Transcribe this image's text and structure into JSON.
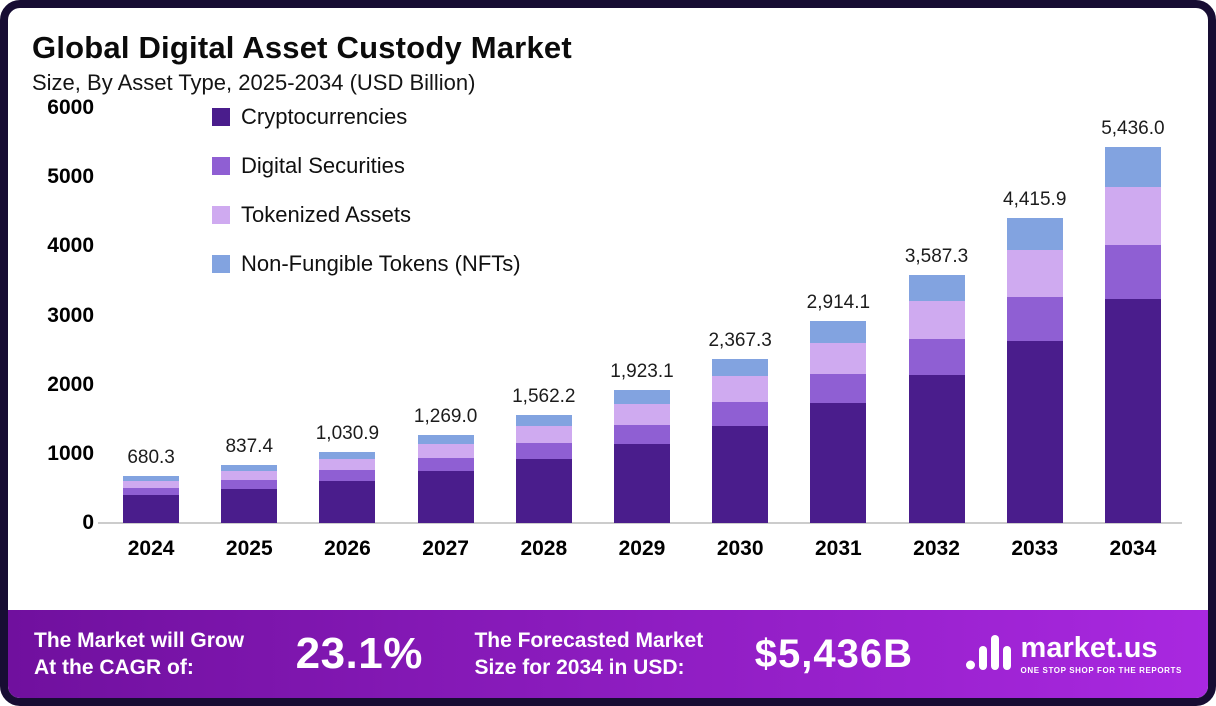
{
  "header": {
    "title": "Global Digital Asset Custody Market",
    "subtitle": "Size, By Asset Type, 2025-2034 (USD Billion)"
  },
  "chart_data": {
    "type": "bar",
    "stacked": true,
    "title": "Global Digital Asset Custody Market",
    "subtitle": "Size, By Asset Type, 2025-2034 (USD Billion)",
    "unit": "USD Billion",
    "categories": [
      "2024",
      "2025",
      "2026",
      "2027",
      "2028",
      "2029",
      "2030",
      "2031",
      "2032",
      "2033",
      "2034"
    ],
    "totals": [
      680.3,
      837.4,
      1030.9,
      1269.0,
      1562.2,
      1923.1,
      2367.3,
      2914.1,
      3587.3,
      4415.9,
      5436.0
    ],
    "total_labels": [
      "680.3",
      "837.4",
      "1,030.9",
      "1,269.0",
      "1,562.2",
      "1,923.1",
      "2,367.3",
      "2,914.1",
      "3,587.3",
      "4,415.9",
      "5,436.0"
    ],
    "series": [
      {
        "name": "Cryptocurrencies",
        "color": "#4a1d8c",
        "values": [
          404.8,
          498.3,
          613.4,
          755.1,
          929.5,
          1144.2,
          1408.5,
          1733.9,
          2134.4,
          2627.5,
          3234.4
        ]
      },
      {
        "name": "Digital Securities",
        "color": "#8f5fd3",
        "values": [
          98.6,
          121.4,
          149.5,
          184.0,
          226.5,
          278.8,
          343.3,
          422.5,
          520.2,
          640.3,
          788.2
        ]
      },
      {
        "name": "Tokenized Assets",
        "color": "#cfaaf0",
        "values": [
          105.4,
          129.8,
          159.8,
          196.7,
          242.1,
          298.1,
          366.9,
          451.7,
          556.0,
          684.5,
          842.6
        ]
      },
      {
        "name": "Non-Fungible Tokens (NFTs)",
        "color": "#82a3e0",
        "values": [
          71.4,
          87.9,
          108.2,
          133.2,
          164.0,
          201.9,
          248.6,
          306.0,
          376.7,
          463.7,
          570.8
        ]
      }
    ],
    "ylim": [
      0,
      6000
    ],
    "yticks": [
      6000,
      5000,
      4000,
      3000,
      2000,
      1000,
      0
    ],
    "grid": false,
    "legend_position": "top-left"
  },
  "banner": {
    "cagr_label_line1": "The Market will Grow",
    "cagr_label_line2": "At the CAGR of:",
    "cagr_value": "23.1%",
    "forecast_label_line1": "The Forecasted Market",
    "forecast_label_line2": "Size for 2034 in USD:",
    "forecast_value": "$5,436B",
    "logo_text": "market.us",
    "logo_tagline": "ONE STOP SHOP FOR THE REPORTS"
  },
  "colors": {
    "frame_border": "#170d33",
    "banner_gradient_start": "#70109e",
    "banner_gradient_end": "#a928e0"
  }
}
